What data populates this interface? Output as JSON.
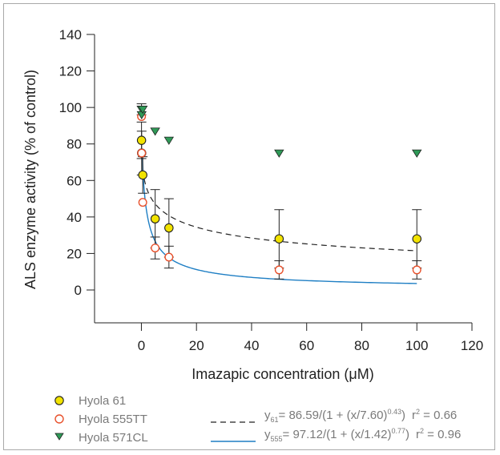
{
  "chart_data": {
    "type": "scatter",
    "title": "",
    "xlabel": "Imazapic concentration (μM)",
    "ylabel": "ALS enzyme activity (% of control)",
    "xlim": [
      -17,
      120
    ],
    "ylim": [
      -18,
      140
    ],
    "xticks": [
      "0",
      "20",
      "40",
      "60",
      "80",
      "100",
      "120"
    ],
    "yticks": [
      "0",
      "20",
      "40",
      "60",
      "80",
      "100",
      "120",
      "140"
    ],
    "xtick_values": [
      0,
      20,
      40,
      60,
      80,
      100,
      120
    ],
    "ytick_values": [
      0,
      20,
      40,
      60,
      80,
      100,
      120,
      140
    ],
    "grid": false,
    "legend_position": "bottom",
    "series": [
      {
        "name": "Hyola 61",
        "marker": "circle",
        "color": "#f2e300",
        "points": [
          {
            "x": 0.05,
            "y": 82,
            "err": 10
          },
          {
            "x": 0.1,
            "y": 75,
            "err": 12
          },
          {
            "x": 0.5,
            "y": 63,
            "err": 10
          },
          {
            "x": 5,
            "y": 39,
            "err": 16
          },
          {
            "x": 10,
            "y": 34,
            "err": 16
          },
          {
            "x": 50,
            "y": 28,
            "err": 16
          },
          {
            "x": 100,
            "y": 28,
            "err": 16
          }
        ]
      },
      {
        "name": "Hyola 555TT",
        "marker": "open-circle",
        "color": "#e8512c",
        "points": [
          {
            "x": 0.05,
            "y": 95,
            "err": 0
          },
          {
            "x": 0.1,
            "y": 75,
            "err": 0
          },
          {
            "x": 0.5,
            "y": 48,
            "err": 0
          },
          {
            "x": 5,
            "y": 23,
            "err": 6
          },
          {
            "x": 10,
            "y": 18,
            "err": 6
          },
          {
            "x": 50,
            "y": 11,
            "err": 5
          },
          {
            "x": 100,
            "y": 11,
            "err": 5
          }
        ]
      },
      {
        "name": "Hyola 571CL",
        "marker": "triangle-down",
        "color": "#2f9a57",
        "points": [
          {
            "x": 0.05,
            "y": 99,
            "err": 3
          },
          {
            "x": 0.1,
            "y": 96,
            "err": 0
          },
          {
            "x": 0.5,
            "y": 99,
            "err": 0
          },
          {
            "x": 5,
            "y": 87,
            "err": 0
          },
          {
            "x": 10,
            "y": 82,
            "err": 0
          },
          {
            "x": 50,
            "y": 75,
            "err": 0
          },
          {
            "x": 100,
            "y": 75,
            "err": 0
          }
        ]
      }
    ],
    "fits": [
      {
        "key": "61",
        "style": "dashed",
        "color": "#222222",
        "a": 86.59,
        "ec50": 7.6,
        "b": 0.43,
        "x_from": 0.5,
        "x_to": 100,
        "eq_y": "y",
        "eq_sub": "61",
        "eq_body": "= 86.59/(1 + (x/7.60)",
        "eq_exp": "0.43",
        "eq_close": ")",
        "r_label": "r",
        "r_exp": "2",
        "r_value": " = 0.66"
      },
      {
        "key": "555",
        "style": "solid",
        "color": "#1f7fc4",
        "a": 97.12,
        "ec50": 1.42,
        "b": 0.77,
        "x_from": 0.35,
        "x_to": 100,
        "eq_y": "y",
        "eq_sub": "555",
        "eq_body": "= 97.12/(1 + (x/1.42)",
        "eq_exp": "0.77",
        "eq_close": ")",
        "r_label": "r",
        "r_exp": "2",
        "r_value": " = 0.96"
      }
    ]
  }
}
